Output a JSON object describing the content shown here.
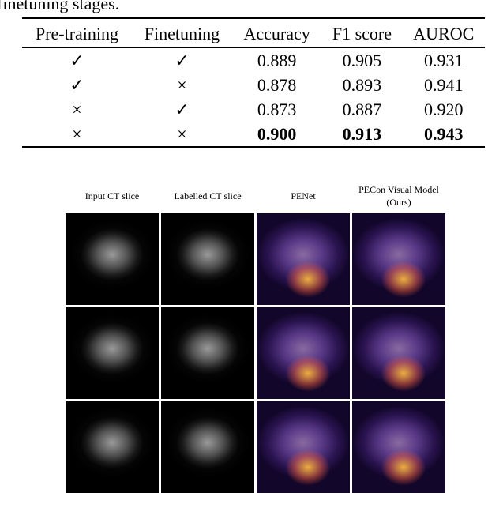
{
  "caption_fragment": "finetuning stages.",
  "table": {
    "header": [
      "Pre-training",
      "Finetuning",
      "Accuracy",
      "F1 score",
      "AUROC"
    ],
    "rows": [
      [
        "✓",
        "✓",
        "0.889",
        "0.905",
        "0.931"
      ],
      [
        "✓",
        "×",
        "0.878",
        "0.893",
        "0.941"
      ],
      [
        "×",
        "✓",
        "0.873",
        "0.887",
        "0.920"
      ],
      [
        "×",
        "×",
        "0.900",
        "0.913",
        "0.943"
      ]
    ]
  },
  "figure": {
    "column_labels": [
      "Input CT slice",
      "Labelled CT slice",
      "PENet",
      "PECon Visual Model (Ours)"
    ]
  }
}
